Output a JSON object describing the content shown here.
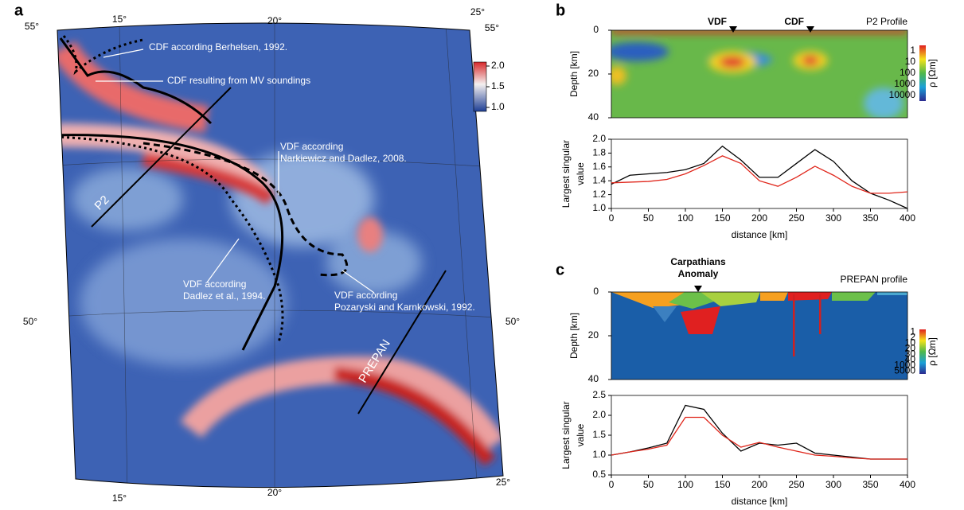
{
  "panel_labels": [
    "a",
    "b",
    "c"
  ],
  "map": {
    "graticule_top": [
      "55°",
      "15°",
      "20°",
      "25°",
      "55°"
    ],
    "graticule_side": [
      "50°",
      "50°"
    ],
    "graticule_bottom": [
      "15°",
      "20°",
      "25°"
    ],
    "colorbar_ticks": [
      {
        "value": 2,
        "label": "2.0"
      },
      1.5,
      {
        "value": 1,
        "label": "1.0"
      }
    ],
    "annotations": [
      "CDF according Berhelsen, 1992.",
      "CDF resulting from MV soundings",
      [
        "VDF according",
        "Narkiewicz and Dadlez, 2008."
      ],
      [
        "VDF according",
        "Dadlez et al., 1994."
      ],
      [
        "VDF according",
        "Pozaryski and Karnkowski, 1992."
      ]
    ],
    "profiles": [
      "P2",
      "PREPAN"
    ]
  },
  "sections": [
    {
      "markers": [
        "VDF",
        "CDF"
      ],
      "title": "P2 Profile",
      "ylabel": "Depth [km]",
      "yticks": [
        0,
        20,
        40
      ],
      "ylim": [
        0,
        40
      ],
      "colorbar_labels": [
        "1",
        "10",
        "100",
        "1000",
        "10000"
      ],
      "colorbar_title": "ρ [Ωm]"
    },
    {
      "markers": [
        [
          "Carpathians",
          "Anomaly"
        ]
      ],
      "title": "PREPAN profile",
      "ylabel": "Depth [km]",
      "yticks": [
        0,
        20,
        40
      ],
      "ylim": [
        0,
        40
      ],
      "colorbar_labels": [
        "1",
        "2",
        "10",
        "20",
        "30",
        "40",
        "1000",
        "5000"
      ],
      "colorbar_title": "ρ [Ωm]"
    }
  ],
  "chart_data": [
    {
      "type": "line",
      "ylabel": [
        "Largest singular",
        "value"
      ],
      "xlabel": "distance [km]",
      "x": [
        0,
        25,
        50,
        75,
        100,
        125,
        150,
        175,
        200,
        225,
        250,
        275,
        300,
        325,
        350,
        375,
        400
      ],
      "series": [
        {
          "color": "#000000",
          "values": [
            1.35,
            1.48,
            1.5,
            1.52,
            1.56,
            1.65,
            1.9,
            1.7,
            1.45,
            1.45,
            1.65,
            1.85,
            1.68,
            1.4,
            1.22,
            1.12,
            1.0
          ]
        },
        {
          "color": "#e0261b",
          "values": [
            1.37,
            1.38,
            1.39,
            1.42,
            1.5,
            1.62,
            1.76,
            1.65,
            1.4,
            1.32,
            1.45,
            1.61,
            1.48,
            1.32,
            1.22,
            1.22,
            1.24
          ]
        }
      ],
      "xlim": [
        0,
        400
      ],
      "ylim": [
        1,
        2
      ],
      "xticks": [
        0,
        50,
        100,
        150,
        200,
        250,
        300,
        350,
        400
      ],
      "yticks": [
        {
          "value": 1,
          "label": "1.0"
        },
        1.2,
        1.4,
        1.6,
        1.8,
        {
          "value": 2,
          "label": "2.0"
        }
      ]
    },
    {
      "type": "line",
      "ylabel": [
        "Largest singular",
        "value"
      ],
      "xlabel": "distance [km]",
      "x": [
        0,
        25,
        50,
        75,
        100,
        125,
        150,
        175,
        200,
        225,
        250,
        275,
        300,
        325,
        350,
        375,
        400
      ],
      "series": [
        {
          "color": "#000000",
          "values": [
            1.0,
            1.08,
            1.18,
            1.3,
            2.25,
            2.15,
            1.55,
            1.1,
            1.3,
            1.25,
            1.3,
            1.05,
            1.0,
            0.95,
            0.9,
            0.9,
            0.9
          ]
        },
        {
          "color": "#e0261b",
          "values": [
            1.0,
            1.08,
            1.15,
            1.25,
            1.95,
            1.95,
            1.5,
            1.2,
            1.32,
            1.2,
            1.1,
            1.0,
            0.97,
            0.93,
            0.9,
            0.9,
            0.9
          ]
        }
      ],
      "xlim": [
        0,
        400
      ],
      "ylim": [
        0.5,
        2.5
      ],
      "xticks": [
        0,
        50,
        100,
        150,
        200,
        250,
        300,
        350,
        400
      ],
      "yticks": [
        0.5,
        {
          "value": 1,
          "label": "1.0"
        },
        1.5,
        {
          "value": 2,
          "label": "2.0"
        },
        2.5
      ]
    }
  ]
}
